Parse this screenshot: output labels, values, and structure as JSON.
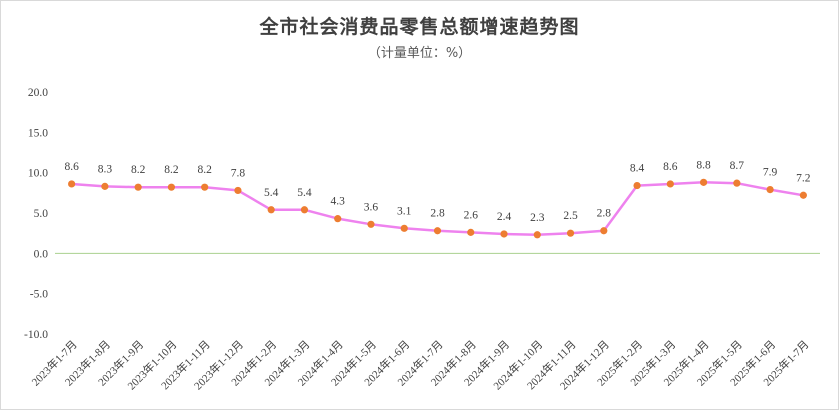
{
  "chart_data": {
    "type": "line",
    "title": "全市社会消费品零售总额增速趋势图",
    "subtitle": "（计量单位：%）",
    "xlabel": "",
    "ylabel": "",
    "categories": [
      "2023年1-7月",
      "2023年1-8月",
      "2023年1-9月",
      "2023年1-10月",
      "2023年1-11月",
      "2023年1-12月",
      "2024年1-2月",
      "2024年1-3月",
      "2024年1-4月",
      "2024年1-5月",
      "2024年1-6月",
      "2024年1-7月",
      "2024年1-8月",
      "2024年1-9月",
      "2024年1-10月",
      "2024年1-11月",
      "2024年1-12月",
      "2025年1-2月",
      "2025年1-3月",
      "2025年1-4月",
      "2025年1-5月",
      "2025年1-6月",
      "2025年1-7月"
    ],
    "values": [
      8.6,
      8.3,
      8.2,
      8.2,
      8.2,
      7.8,
      5.4,
      5.4,
      4.3,
      3.6,
      3.1,
      2.8,
      2.6,
      2.4,
      2.3,
      2.5,
      2.8,
      8.4,
      8.6,
      8.8,
      8.7,
      7.9,
      7.2
    ],
    "data_labels": [
      "8.6",
      "8.3",
      "8.2",
      "8.2",
      "8.2",
      "7.8",
      "5.4",
      "5.4",
      "4.3",
      "3.6",
      "3.1",
      "2.8",
      "2.6",
      "2.4",
      "2.3",
      "2.5",
      "2.8",
      "8.4",
      "8.6",
      "8.8",
      "8.7",
      "7.9",
      "7.2"
    ],
    "ylim": [
      -10,
      20
    ],
    "yticks": [
      "20.0",
      "15.0",
      "10.0",
      "5.0",
      "0.0",
      "-5.0",
      "-10.0"
    ],
    "ytick_values": [
      20,
      15,
      10,
      5,
      0,
      -5,
      -10
    ],
    "grid": false,
    "legend": "none",
    "colors": {
      "line": "#ee82ee",
      "marker": "#ed7d31",
      "zero_line": "#a9d18e",
      "text": "#404040"
    }
  }
}
